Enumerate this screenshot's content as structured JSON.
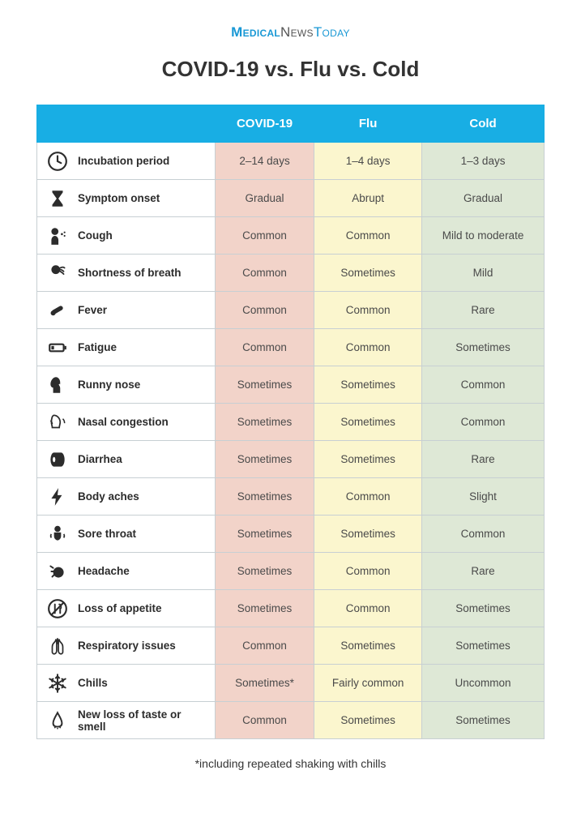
{
  "brand": {
    "part1": "Medical",
    "part2": "News",
    "part3": "Today"
  },
  "title": "COVID-19 vs. Flu vs. Cold",
  "columns": {
    "blank": "",
    "covid": "COVID-19",
    "flu": "Flu",
    "cold": "Cold"
  },
  "column_colors": {
    "covid": "#f2d3c9",
    "flu": "#fbf6ce",
    "cold": "#dee8d6"
  },
  "header_bg": "#18aee4",
  "border_color": "#c7cfd3",
  "rows": [
    {
      "icon": "clock",
      "label": "Incubation period",
      "covid": "2–14 days",
      "flu": "1–4 days",
      "cold": "1–3 days"
    },
    {
      "icon": "hourglass",
      "label": "Symptom onset",
      "covid": "Gradual",
      "flu": "Abrupt",
      "cold": "Gradual"
    },
    {
      "icon": "cough",
      "label": "Cough",
      "covid": "Common",
      "flu": "Common",
      "cold": "Mild to moderate"
    },
    {
      "icon": "breath",
      "label": "Shortness of breath",
      "covid": "Common",
      "flu": "Sometimes",
      "cold": "Mild"
    },
    {
      "icon": "thermometer",
      "label": "Fever",
      "covid": "Common",
      "flu": "Common",
      "cold": "Rare"
    },
    {
      "icon": "battery",
      "label": "Fatigue",
      "covid": "Common",
      "flu": "Common",
      "cold": "Sometimes"
    },
    {
      "icon": "runnynose",
      "label": "Runny nose",
      "covid": "Sometimes",
      "flu": "Sometimes",
      "cold": "Common"
    },
    {
      "icon": "congestion",
      "label": "Nasal congestion",
      "covid": "Sometimes",
      "flu": "Sometimes",
      "cold": "Common"
    },
    {
      "icon": "tp",
      "label": "Diarrhea",
      "covid": "Sometimes",
      "flu": "Sometimes",
      "cold": "Rare"
    },
    {
      "icon": "bolt",
      "label": "Body aches",
      "covid": "Sometimes",
      "flu": "Common",
      "cold": "Slight"
    },
    {
      "icon": "throat",
      "label": "Sore throat",
      "covid": "Sometimes",
      "flu": "Sometimes",
      "cold": "Common"
    },
    {
      "icon": "headache",
      "label": "Headache",
      "covid": "Sometimes",
      "flu": "Common",
      "cold": "Rare"
    },
    {
      "icon": "appetite",
      "label": "Loss of appetite",
      "covid": "Sometimes",
      "flu": "Common",
      "cold": "Sometimes"
    },
    {
      "icon": "lungs",
      "label": "Respiratory issues",
      "covid": "Common",
      "flu": "Sometimes",
      "cold": "Sometimes"
    },
    {
      "icon": "snowflake",
      "label": "Chills",
      "covid": "Sometimes*",
      "flu": "Fairly common",
      "cold": "Uncommon"
    },
    {
      "icon": "nose",
      "label": "New loss of taste or smell",
      "covid": "Common",
      "flu": "Sometimes",
      "cold": "Sometimes"
    }
  ],
  "footnote": "*including repeated shaking with chills",
  "fonts": {
    "title_size": 26,
    "header_size": 15,
    "cell_size": 13.5,
    "footnote_size": 14
  }
}
